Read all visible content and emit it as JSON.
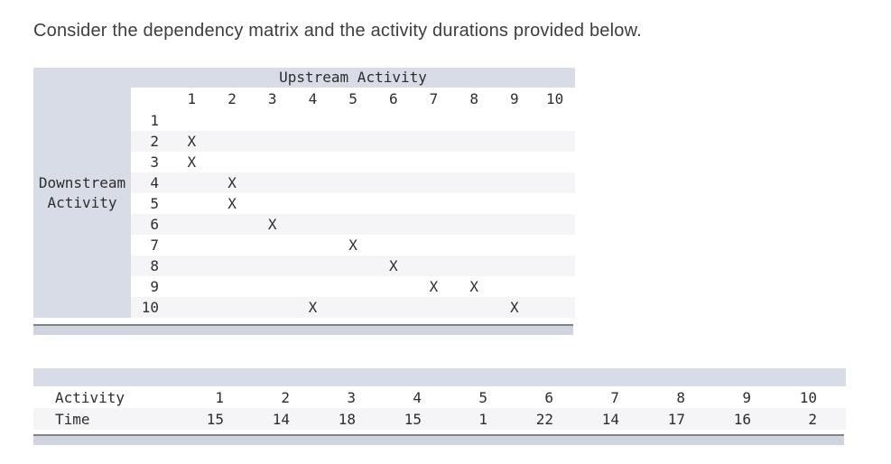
{
  "title": "Consider the dependency matrix and the activity durations provided below.",
  "colors": {
    "band": "#d8dce6",
    "row_stripe": "#f5f5f7",
    "bar_fill": "#cfd4df",
    "bar_border": "#7f848f",
    "text": "#2d2d2d",
    "title_text": "#3e3e3e"
  },
  "dependency_matrix": {
    "top_header": "Upstream Activity",
    "left_header_lines": [
      "Downstream",
      "Activity"
    ],
    "mark_symbol": "X",
    "columns": [
      "1",
      "2",
      "3",
      "4",
      "5",
      "6",
      "7",
      "8",
      "9",
      "10"
    ],
    "rows": [
      {
        "label": "1",
        "deps": []
      },
      {
        "label": "2",
        "deps": [
          1
        ]
      },
      {
        "label": "3",
        "deps": [
          1
        ]
      },
      {
        "label": "4",
        "deps": [
          2
        ]
      },
      {
        "label": "5",
        "deps": [
          2
        ]
      },
      {
        "label": "6",
        "deps": [
          3
        ]
      },
      {
        "label": "7",
        "deps": [
          5
        ]
      },
      {
        "label": "8",
        "deps": [
          6
        ]
      },
      {
        "label": "9",
        "deps": [
          7,
          8
        ]
      },
      {
        "label": "10",
        "deps": [
          4,
          9
        ]
      }
    ]
  },
  "durations_table": {
    "activity_row_label": "Activity",
    "time_row_label": "Time",
    "activities": [
      "1",
      "2",
      "3",
      "4",
      "5",
      "6",
      "7",
      "8",
      "9",
      "10"
    ],
    "times": [
      "15",
      "14",
      "18",
      "15",
      "1",
      "22",
      "14",
      "17",
      "16",
      "2"
    ]
  }
}
